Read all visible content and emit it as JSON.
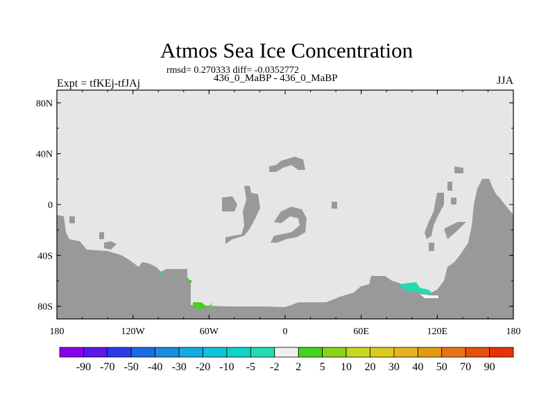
{
  "header": {
    "title": "Atmos Sea Ice Concentration",
    "stats": "rmsd= 0.270333 diff= -0.0352772",
    "subtitle": "436_0_MaBP - 436_0_MaBP",
    "left_label": "Expt = tfKEj-tfJAj",
    "right_label": "JJA"
  },
  "map": {
    "x_ticks": [
      "180",
      "120W",
      "60W",
      "0",
      "60E",
      "120E",
      "180"
    ],
    "y_ticks": [
      "80N",
      "40N",
      "0",
      "40S",
      "80S"
    ],
    "colors": {
      "ocean": "#e6e6e6",
      "land": "#999999"
    }
  },
  "colorbar": {
    "labels": [
      "-90",
      "-70",
      "-50",
      "-40",
      "-30",
      "-20",
      "-10",
      "-5",
      "-2",
      "2",
      "5",
      "10",
      "20",
      "30",
      "40",
      "50",
      "70",
      "90"
    ],
    "colors": [
      "#8a00e6",
      "#5a19e6",
      "#2d3ce6",
      "#1c6be0",
      "#1a8ce0",
      "#15a9e0",
      "#10c1dc",
      "#10d2c6",
      "#20dcb0",
      "#f0f0f0",
      "#44d21e",
      "#8ad21e",
      "#c8d81e",
      "#dccb1e",
      "#e6b41e",
      "#e69a14",
      "#e67314",
      "#e6500f",
      "#e6320a"
    ]
  }
}
